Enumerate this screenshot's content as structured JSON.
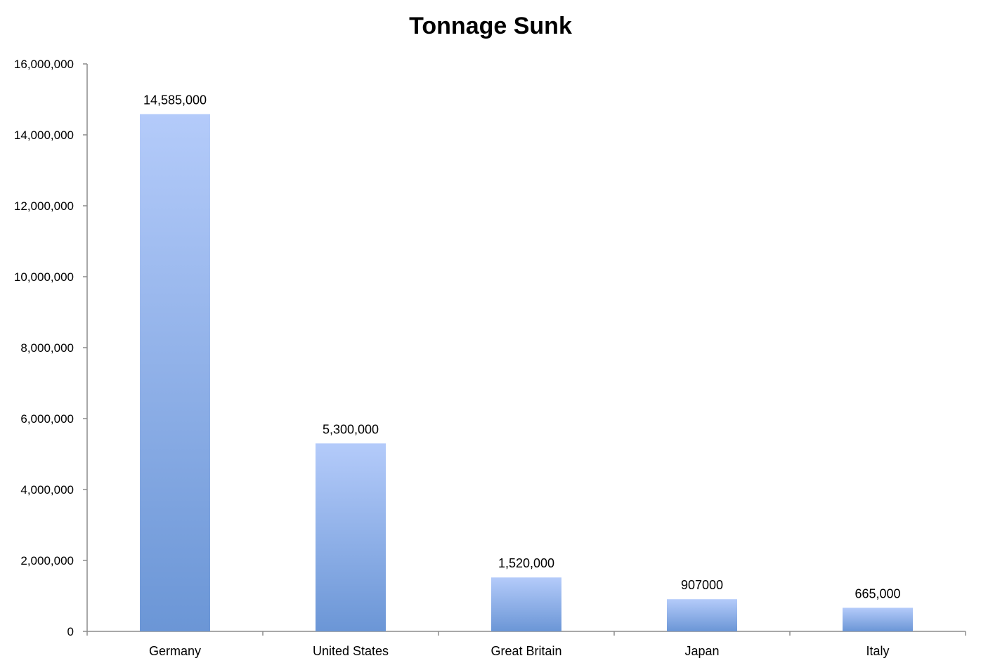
{
  "chart_data": {
    "type": "bar",
    "title": "Tonnage Sunk",
    "xlabel": "",
    "ylabel": "",
    "categories": [
      "Germany",
      "United States",
      "Great Britain",
      "Japan",
      "Italy"
    ],
    "values": [
      14585000,
      5300000,
      1520000,
      907000,
      665000
    ],
    "data_labels": [
      "14,585,000",
      "5,300,000",
      "1,520,000",
      "907000",
      "665,000"
    ],
    "ylim": [
      0,
      16000000
    ],
    "yticks": [
      0,
      2000000,
      4000000,
      6000000,
      8000000,
      10000000,
      12000000,
      14000000,
      16000000
    ],
    "ytick_labels": [
      "0",
      "2,000,000",
      "4,000,000",
      "6,000,000",
      "8,000,000",
      "10,000,000",
      "12,000,000",
      "14,000,000",
      "16,000,000"
    ],
    "grid": false,
    "legend": "none",
    "colors": {
      "bar_top": "#b4cbfa",
      "bar_bottom": "#6b96d6",
      "axis": "#8c8c8c"
    }
  }
}
